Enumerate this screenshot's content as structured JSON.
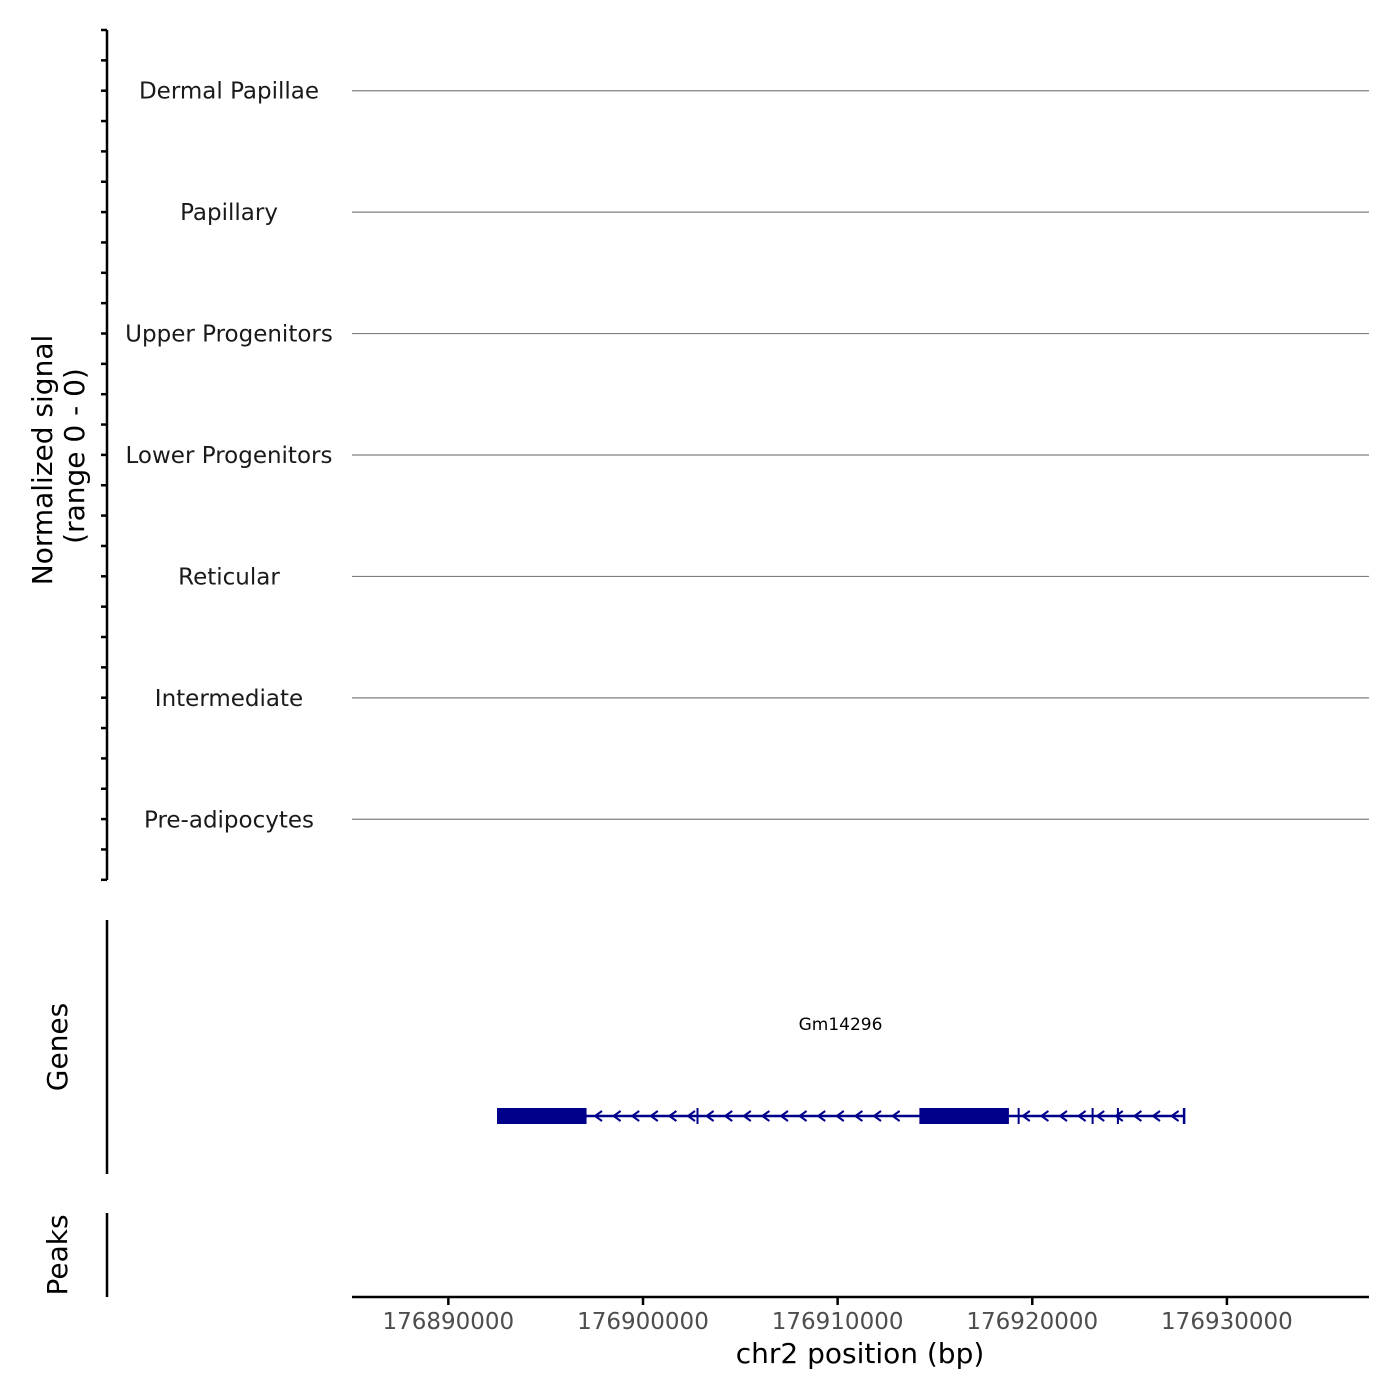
{
  "chart_data": {
    "type": "genome-track",
    "coverage": {
      "ylabel_line1": "Normalized signal",
      "ylabel_line2": "(range 0 - 0)",
      "tracks": [
        {
          "name": "Dermal Papillae",
          "values": []
        },
        {
          "name": "Papillary",
          "values": []
        },
        {
          "name": "Upper Progenitors",
          "values": []
        },
        {
          "name": "Lower Progenitors",
          "values": []
        },
        {
          "name": "Reticular",
          "values": []
        },
        {
          "name": "Intermediate",
          "values": []
        },
        {
          "name": "Pre-adipocytes",
          "values": []
        }
      ]
    },
    "genes": {
      "label": "Genes",
      "items": [
        {
          "name": "Gm14296",
          "strand": "-",
          "start": 176892500,
          "end": 176927800,
          "exons": [
            [
              176892500,
              176897100
            ],
            [
              176914200,
              176918800
            ]
          ],
          "marks": [
            176902800,
            176919300,
            176923100,
            176924400
          ]
        }
      ]
    },
    "peaks": {
      "label": "Peaks",
      "items": []
    },
    "x_axis": {
      "xlabel": "chr2 position (bp)",
      "xlim": [
        176885050,
        176937300
      ],
      "ticks": [
        176890000,
        176900000,
        176910000,
        176920000,
        176930000
      ],
      "tick_labels": [
        "176890000",
        "176900000",
        "176910000",
        "176920000",
        "176930000"
      ]
    }
  },
  "colors": {
    "gene": "#00008b",
    "baseline": "#7f7f7f",
    "axis": "#000000",
    "tick_text": "#4d4d4d"
  }
}
